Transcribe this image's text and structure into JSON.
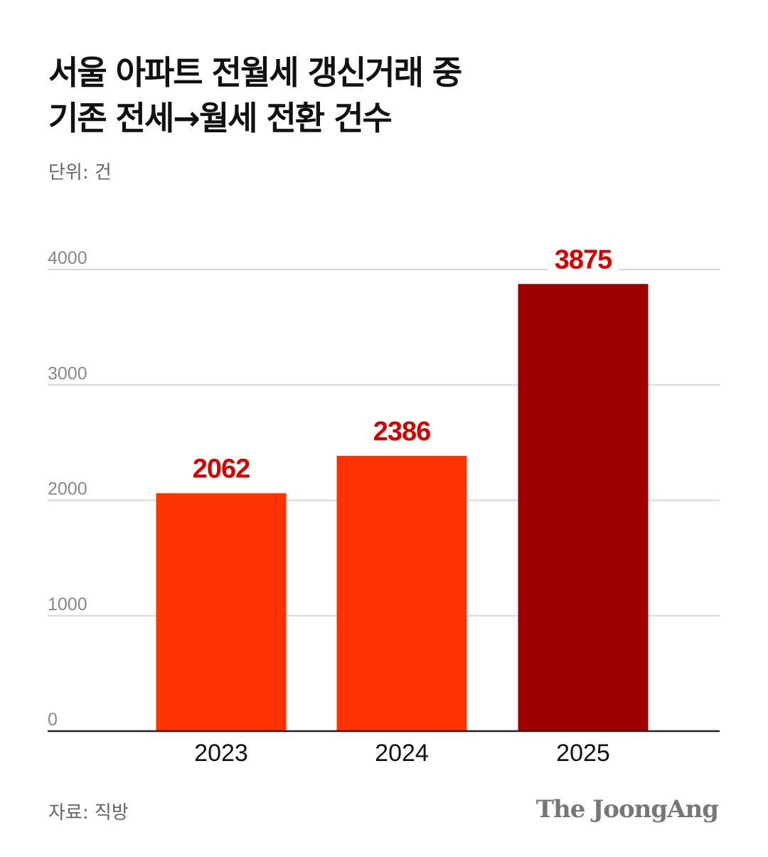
{
  "title_line1": "서울 아파트 전월세 갱신거래 중",
  "title_line2": "기존 전세→월세 전환 건수",
  "unit": "단위: 건",
  "source": "자료: 직방",
  "logo": "The JoongAng",
  "chart_data": {
    "type": "bar",
    "categories": [
      "2023",
      "2024",
      "2025"
    ],
    "values": [
      2062,
      2386,
      3875
    ],
    "ylim": [
      0,
      4000
    ],
    "yticks": [
      0,
      1000,
      2000,
      3000,
      4000
    ],
    "grid": true,
    "colors": [
      "#FF3300",
      "#FF3300",
      "#9E0000"
    ],
    "label_color": "#D60000"
  }
}
